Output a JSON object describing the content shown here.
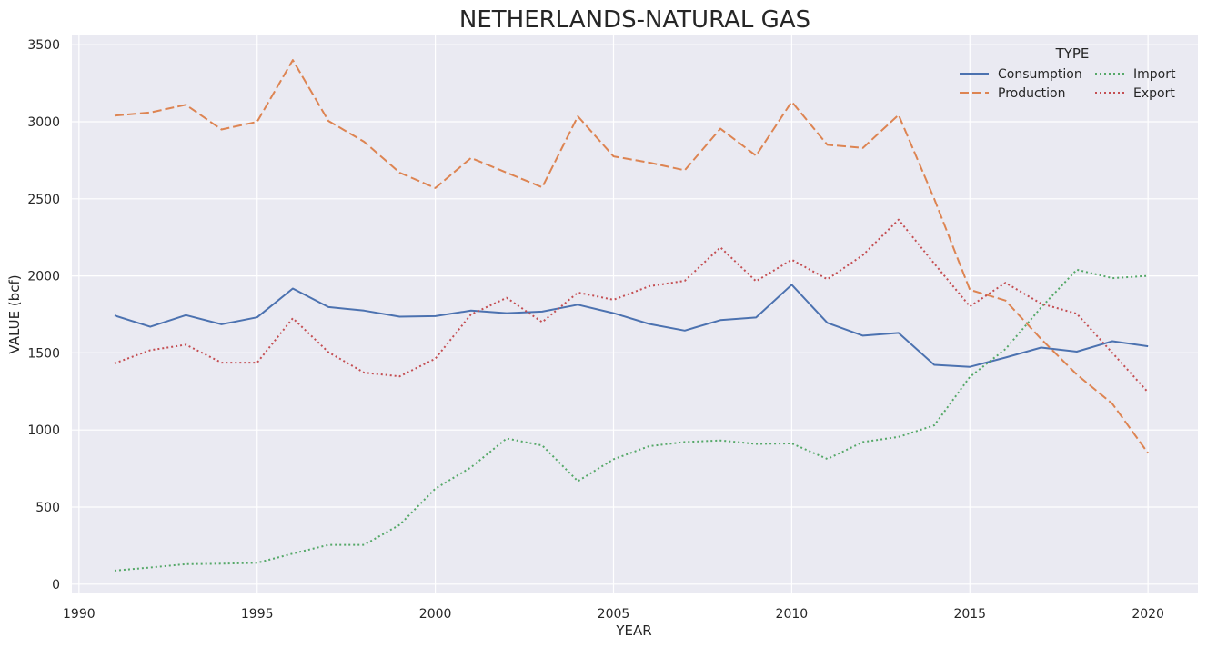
{
  "chart_data": {
    "type": "line",
    "title": "NETHERLANDS-NATURAL GAS",
    "xlabel": "YEAR",
    "ylabel": "VALUE (bcf)",
    "xlim": [
      1989.8,
      2021.4
    ],
    "ylim": [
      -60,
      3560
    ],
    "xticks": [
      1990,
      1995,
      2000,
      2005,
      2010,
      2015,
      2020
    ],
    "yticks": [
      0,
      500,
      1000,
      1500,
      2000,
      2500,
      3000,
      3500
    ],
    "grid": true,
    "legend": {
      "title": "TYPE",
      "position": "top-right",
      "columns": 2
    },
    "x": [
      1991,
      1992,
      1993,
      1994,
      1995,
      1996,
      1997,
      1998,
      1999,
      2000,
      2001,
      2002,
      2003,
      2004,
      2005,
      2006,
      2007,
      2008,
      2009,
      2010,
      2011,
      2012,
      2013,
      2014,
      2015,
      2016,
      2017,
      2018,
      2019,
      2020
    ],
    "series": [
      {
        "name": "Consumption",
        "color": "#4c72b0",
        "dash": "solid",
        "values": [
          1743,
          1670,
          1745,
          1686,
          1731,
          1918,
          1798,
          1775,
          1735,
          1739,
          1775,
          1758,
          1768,
          1813,
          1758,
          1688,
          1645,
          1713,
          1730,
          1943,
          1695,
          1612,
          1630,
          1423,
          1410,
          1470,
          1535,
          1508,
          1576,
          1543
        ]
      },
      {
        "name": "Production",
        "color": "#dd8452",
        "dash": "dashed",
        "values": [
          3040,
          3060,
          3110,
          2950,
          3000,
          3400,
          3005,
          2870,
          2670,
          2570,
          2765,
          2670,
          2575,
          3035,
          2775,
          2735,
          2685,
          2955,
          2780,
          3130,
          2850,
          2830,
          3045,
          2500,
          1910,
          1840,
          1590,
          1360,
          1170,
          850
        ]
      },
      {
        "name": "Import",
        "color": "#55a868",
        "dash": "dotted",
        "values": [
          88,
          108,
          130,
          133,
          138,
          198,
          255,
          255,
          385,
          620,
          758,
          945,
          900,
          668,
          810,
          895,
          922,
          932,
          910,
          913,
          812,
          922,
          955,
          1030,
          1345,
          1525,
          1795,
          2040,
          1985,
          2000
        ]
      },
      {
        "name": "Export",
        "color": "#c44e52",
        "dash": "dotted",
        "values": [
          1433,
          1518,
          1553,
          1437,
          1437,
          1725,
          1505,
          1372,
          1348,
          1463,
          1750,
          1858,
          1700,
          1892,
          1845,
          1933,
          1968,
          2185,
          1965,
          2105,
          1978,
          2135,
          2365,
          2080,
          1802,
          1955,
          1820,
          1755,
          1500,
          1245
        ]
      }
    ]
  }
}
